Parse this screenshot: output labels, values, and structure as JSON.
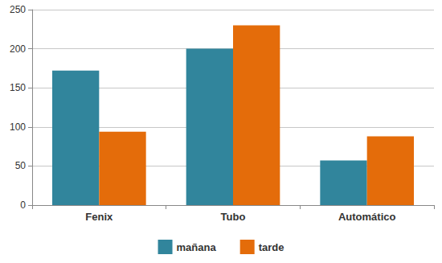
{
  "chart_data": {
    "type": "bar",
    "categories": [
      "Fenix",
      "Tubo",
      "Automático"
    ],
    "series": [
      {
        "name": "mañana",
        "color": "#31859c",
        "values": [
          172,
          200,
          57
        ]
      },
      {
        "name": "tarde",
        "color": "#e46c0a",
        "values": [
          94,
          230,
          88
        ]
      }
    ],
    "ylim": [
      0,
      250
    ],
    "yticks": [
      0,
      50,
      100,
      150,
      200,
      250
    ],
    "grid": true,
    "legend": "bottom"
  }
}
